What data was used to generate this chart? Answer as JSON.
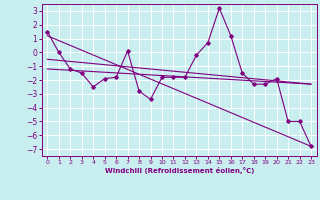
{
  "xlabel": "Windchill (Refroidissement éolien,°C)",
  "background_color": "#c8eef0",
  "grid_color": "#ffffff",
  "line_color": "#800080",
  "xlim": [
    -0.5,
    23.5
  ],
  "ylim": [
    -7.5,
    3.5
  ],
  "xticks": [
    0,
    1,
    2,
    3,
    4,
    5,
    6,
    7,
    8,
    9,
    10,
    11,
    12,
    13,
    14,
    15,
    16,
    17,
    18,
    19,
    20,
    21,
    22,
    23
  ],
  "yticks": [
    -7,
    -6,
    -5,
    -4,
    -3,
    -2,
    -1,
    0,
    1,
    2,
    3
  ],
  "series1_x": [
    0,
    1,
    2,
    3,
    4,
    5,
    6,
    7,
    8,
    9,
    10,
    11,
    12,
    13,
    14,
    15,
    16,
    17,
    18,
    19,
    20,
    21,
    22,
    23
  ],
  "series1_y": [
    1.5,
    0.0,
    -1.2,
    -1.5,
    -2.5,
    -1.9,
    -1.8,
    0.1,
    -2.8,
    -3.4,
    -1.8,
    -1.8,
    -1.8,
    -0.2,
    0.7,
    3.2,
    1.2,
    -1.5,
    -2.3,
    -2.3,
    -1.9,
    -5.0,
    -5.0,
    -6.8
  ],
  "series2_x": [
    0,
    23
  ],
  "series2_y": [
    1.2,
    -6.8
  ],
  "series3_x": [
    0,
    23
  ],
  "series3_y": [
    -0.5,
    -2.3
  ],
  "series4_x": [
    0,
    23
  ],
  "series4_y": [
    -1.2,
    -2.3
  ]
}
